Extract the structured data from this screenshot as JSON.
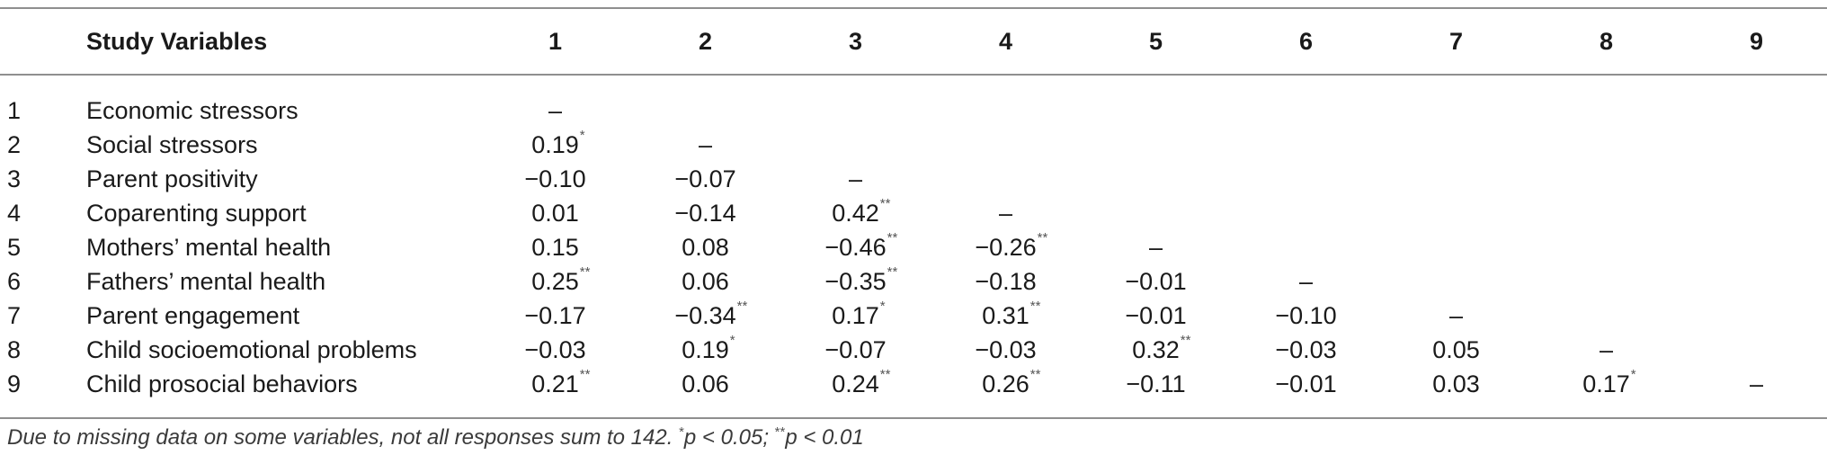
{
  "table": {
    "headers": [
      "",
      "Study Variables",
      "1",
      "2",
      "3",
      "4",
      "5",
      "6",
      "7",
      "8",
      "9"
    ],
    "rows": [
      {
        "num": "1",
        "label": "Economic stressors",
        "cells": [
          [
            "–",
            ""
          ],
          [
            "",
            ""
          ],
          [
            "",
            ""
          ],
          [
            "",
            ""
          ],
          [
            "",
            ""
          ],
          [
            "",
            ""
          ],
          [
            "",
            ""
          ],
          [
            "",
            ""
          ],
          [
            "",
            ""
          ]
        ]
      },
      {
        "num": "2",
        "label": "Social stressors",
        "cells": [
          [
            "0.19",
            "*"
          ],
          [
            "–",
            ""
          ],
          [
            "",
            ""
          ],
          [
            "",
            ""
          ],
          [
            "",
            ""
          ],
          [
            "",
            ""
          ],
          [
            "",
            ""
          ],
          [
            "",
            ""
          ],
          [
            "",
            ""
          ]
        ]
      },
      {
        "num": "3",
        "label": "Parent positivity",
        "cells": [
          [
            "−0.10",
            ""
          ],
          [
            "−0.07",
            ""
          ],
          [
            "–",
            ""
          ],
          [
            "",
            ""
          ],
          [
            "",
            ""
          ],
          [
            "",
            ""
          ],
          [
            "",
            ""
          ],
          [
            "",
            ""
          ],
          [
            "",
            ""
          ]
        ]
      },
      {
        "num": "4",
        "label": "Coparenting support",
        "cells": [
          [
            "0.01",
            ""
          ],
          [
            "−0.14",
            ""
          ],
          [
            "0.42",
            "**"
          ],
          [
            "–",
            ""
          ],
          [
            "",
            ""
          ],
          [
            "",
            ""
          ],
          [
            "",
            ""
          ],
          [
            "",
            ""
          ],
          [
            "",
            ""
          ]
        ]
      },
      {
        "num": "5",
        "label": "Mothers’ mental health",
        "cells": [
          [
            "0.15",
            ""
          ],
          [
            "0.08",
            ""
          ],
          [
            "−0.46",
            "**"
          ],
          [
            "−0.26",
            "**"
          ],
          [
            "–",
            ""
          ],
          [
            "",
            ""
          ],
          [
            "",
            ""
          ],
          [
            "",
            ""
          ],
          [
            "",
            ""
          ]
        ]
      },
      {
        "num": "6",
        "label": "Fathers’ mental health",
        "cells": [
          [
            "0.25",
            "**"
          ],
          [
            "0.06",
            ""
          ],
          [
            "−0.35",
            "**"
          ],
          [
            "−0.18",
            ""
          ],
          [
            "−0.01",
            ""
          ],
          [
            "–",
            ""
          ],
          [
            "",
            ""
          ],
          [
            "",
            ""
          ],
          [
            "",
            ""
          ]
        ]
      },
      {
        "num": "7",
        "label": "Parent engagement",
        "cells": [
          [
            "−0.17",
            ""
          ],
          [
            "−0.34",
            "**"
          ],
          [
            "0.17",
            "*"
          ],
          [
            "0.31",
            "**"
          ],
          [
            "−0.01",
            ""
          ],
          [
            "−0.10",
            ""
          ],
          [
            "–",
            ""
          ],
          [
            "",
            ""
          ],
          [
            "",
            ""
          ]
        ]
      },
      {
        "num": "8",
        "label": "Child socioemotional problems",
        "cells": [
          [
            "−0.03",
            ""
          ],
          [
            "0.19",
            "*"
          ],
          [
            "−0.07",
            ""
          ],
          [
            "−0.03",
            ""
          ],
          [
            "0.32",
            "**"
          ],
          [
            "−0.03",
            ""
          ],
          [
            "0.05",
            ""
          ],
          [
            "–",
            ""
          ],
          [
            "",
            ""
          ]
        ]
      },
      {
        "num": "9",
        "label": "Child prosocial behaviors",
        "cells": [
          [
            "0.21",
            "**"
          ],
          [
            "0.06",
            ""
          ],
          [
            "0.24",
            "**"
          ],
          [
            "0.26",
            "**"
          ],
          [
            "−0.11",
            ""
          ],
          [
            "−0.01",
            ""
          ],
          [
            "0.03",
            ""
          ],
          [
            "0.17",
            "*"
          ],
          [
            "–",
            ""
          ]
        ]
      }
    ]
  },
  "footnote": {
    "text_main": "Due to missing data on some variables, not all responses sum to 142.",
    "sup1": "*",
    "text_p1": "p < 0.05;",
    "sup2": "**",
    "text_p2": "p < 0.01"
  }
}
